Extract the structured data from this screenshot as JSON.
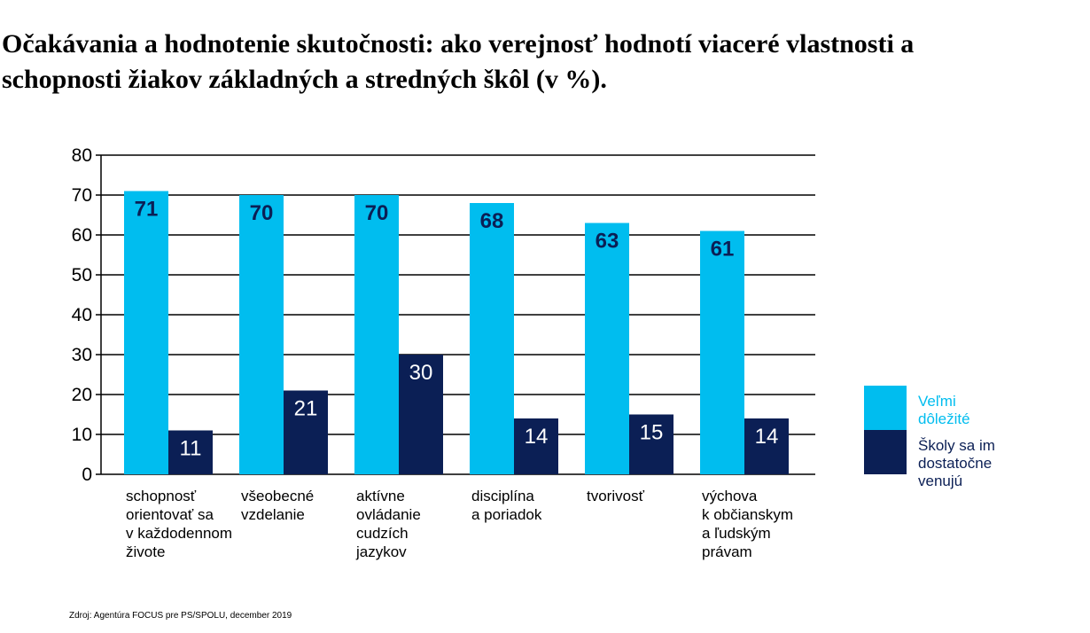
{
  "title": {
    "line1": "Očakávania a hodnotenie skutočnosti: ako verejnosť hodnotí viaceré vlastnosti a",
    "line2": "schopnosti žiakov základných a stredných škôl (v %)."
  },
  "source": "Zdroj: Agentúra FOCUS pre PS/SPOLU, december 2019",
  "colors": {
    "series1": "#00BDEF",
    "series2": "#0B1F55",
    "label_dark": "#0B1F55",
    "label_light": "#ffffff"
  },
  "chart_data": {
    "type": "bar",
    "title": "",
    "xlabel": "",
    "ylabel": "",
    "ylim": [
      0,
      80
    ],
    "yticks": [
      0,
      10,
      20,
      30,
      40,
      50,
      60,
      70,
      80
    ],
    "grid": true,
    "legend_position": "right",
    "categories": [
      [
        "schopnosť",
        "orientovať sa",
        "v každodennom",
        "živote"
      ],
      [
        "všeobecné",
        "vzdelanie"
      ],
      [
        "aktívne",
        "ovládanie",
        "cudzích",
        "jazykov"
      ],
      [
        "disciplína",
        "a poriadok"
      ],
      [
        "tvorivosť"
      ],
      [
        "výchova",
        "k občianskym",
        "a ľudským",
        "právam"
      ]
    ],
    "series": [
      {
        "name": [
          "Veľmi",
          "dôležité"
        ],
        "values": [
          71,
          70,
          70,
          68,
          63,
          61
        ]
      },
      {
        "name": [
          "Školy sa im",
          "dostatočne",
          "venujú"
        ],
        "values": [
          11,
          21,
          30,
          14,
          15,
          14
        ]
      }
    ]
  }
}
